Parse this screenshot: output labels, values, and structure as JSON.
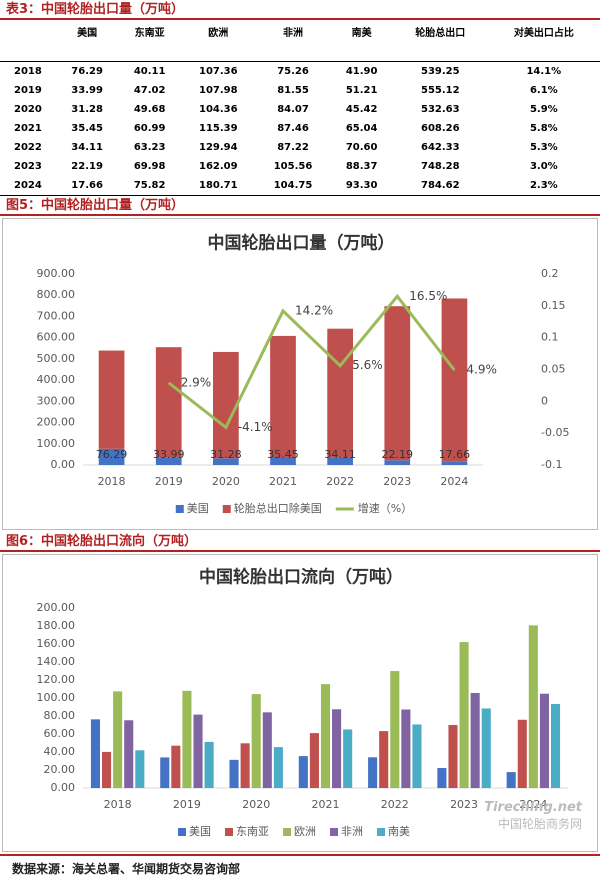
{
  "table": {
    "title": "表3：中国轮胎出口量（万吨）",
    "columns": [
      "",
      "美国",
      "东南亚",
      "欧洲",
      "非洲",
      "南美",
      "轮胎总出口",
      "对美出口占比"
    ],
    "rows": [
      [
        "2018",
        "76.29",
        "40.11",
        "107.36",
        "75.26",
        "41.90",
        "539.25",
        "14.1%"
      ],
      [
        "2019",
        "33.99",
        "47.02",
        "107.98",
        "81.55",
        "51.21",
        "555.12",
        "6.1%"
      ],
      [
        "2020",
        "31.28",
        "49.68",
        "104.36",
        "84.07",
        "45.42",
        "532.63",
        "5.9%"
      ],
      [
        "2021",
        "35.45",
        "60.99",
        "115.39",
        "87.46",
        "65.04",
        "608.26",
        "5.8%"
      ],
      [
        "2022",
        "34.11",
        "63.23",
        "129.94",
        "87.22",
        "70.60",
        "642.33",
        "5.3%"
      ],
      [
        "2023",
        "22.19",
        "69.98",
        "162.09",
        "105.56",
        "88.37",
        "748.28",
        "3.0%"
      ],
      [
        "2024",
        "17.66",
        "75.82",
        "180.71",
        "104.75",
        "93.30",
        "784.62",
        "2.3%"
      ]
    ]
  },
  "chart_data": [
    {
      "type": "bar",
      "heading": "图5：中国轮胎出口量（万吨）",
      "title": "中国轮胎出口量（万吨）",
      "stacked": true,
      "categories": [
        "2018",
        "2019",
        "2020",
        "2021",
        "2022",
        "2023",
        "2024"
      ],
      "series": [
        {
          "name": "美国",
          "color": "#4472c4",
          "values": [
            76.29,
            33.99,
            31.28,
            35.45,
            34.11,
            22.19,
            17.66
          ],
          "data_labels": true
        },
        {
          "name": "轮胎总出口除美国",
          "color": "#c0504d",
          "values": [
            462.96,
            521.13,
            501.35,
            572.81,
            608.22,
            726.09,
            766.96
          ]
        },
        {
          "name": "增速（%）",
          "color": "#9bbb59",
          "type": "line",
          "axis": "y2",
          "values": [
            null,
            0.029,
            -0.041,
            0.142,
            0.056,
            0.165,
            0.049
          ],
          "value_labels": [
            null,
            "2.9%",
            "-4.1%",
            "14.2%",
            "5.6%",
            "16.5%",
            "4.9%"
          ]
        }
      ],
      "ylim": [
        0,
        900
      ],
      "yticks": [
        {
          "value": 0,
          "label": "0.00"
        },
        {
          "value": 100,
          "label": "100.00"
        },
        {
          "value": 200,
          "label": "200.00"
        },
        {
          "value": 300,
          "label": "300.00"
        },
        {
          "value": 400,
          "label": "400.00"
        },
        {
          "value": 500,
          "label": "500.00"
        },
        {
          "value": 600,
          "label": "600.00"
        },
        {
          "value": 700,
          "label": "700.00"
        },
        {
          "value": 800,
          "label": "800.00"
        },
        {
          "value": 900,
          "label": "900.00"
        }
      ],
      "y2lim": [
        -0.1,
        0.2
      ],
      "y2ticks": [
        -0.1,
        -0.05,
        0,
        0.05,
        0.1,
        0.15,
        0.2
      ],
      "legend": "bottom"
    },
    {
      "type": "bar",
      "heading": "图6：中国轮胎出口流向（万吨）",
      "title": "中国轮胎出口流向（万吨）",
      "categories": [
        "2018",
        "2019",
        "2020",
        "2021",
        "2022",
        "2023",
        "2024"
      ],
      "series": [
        {
          "name": "美国",
          "color": "#4472c4",
          "values": [
            76.29,
            33.99,
            31.28,
            35.45,
            34.11,
            22.19,
            17.66
          ]
        },
        {
          "name": "东南亚",
          "color": "#c0504d",
          "values": [
            40.11,
            47.02,
            49.68,
            60.99,
            63.23,
            69.98,
            75.82
          ]
        },
        {
          "name": "欧洲",
          "color": "#9bbb59",
          "values": [
            107.36,
            107.98,
            104.36,
            115.39,
            129.94,
            162.09,
            180.71
          ]
        },
        {
          "name": "非洲",
          "color": "#8064a2",
          "values": [
            75.26,
            81.55,
            84.07,
            87.46,
            87.22,
            105.56,
            104.75
          ]
        },
        {
          "name": "南美",
          "color": "#4bacc6",
          "values": [
            41.9,
            51.21,
            45.42,
            65.04,
            70.6,
            88.37,
            93.3
          ]
        }
      ],
      "ylim": [
        0,
        200
      ],
      "yticks": [
        {
          "value": 0,
          "label": "0.00"
        },
        {
          "value": 20,
          "label": "20.00"
        },
        {
          "value": 40,
          "label": "40.00"
        },
        {
          "value": 60,
          "label": "60.00"
        },
        {
          "value": 80,
          "label": "80.00"
        },
        {
          "value": 100,
          "label": "100.00"
        },
        {
          "value": 120,
          "label": "120.00"
        },
        {
          "value": 140,
          "label": "140.00"
        },
        {
          "value": 160,
          "label": "160.00"
        },
        {
          "value": 180,
          "label": "180.00"
        },
        {
          "value": 200,
          "label": "200.00"
        }
      ],
      "legend": "bottom"
    }
  ],
  "watermark": {
    "brand": "Tireching.net",
    "name": "中国轮胎商务网"
  },
  "source": "数据来源：海关总署、华闻期货交易咨询部"
}
